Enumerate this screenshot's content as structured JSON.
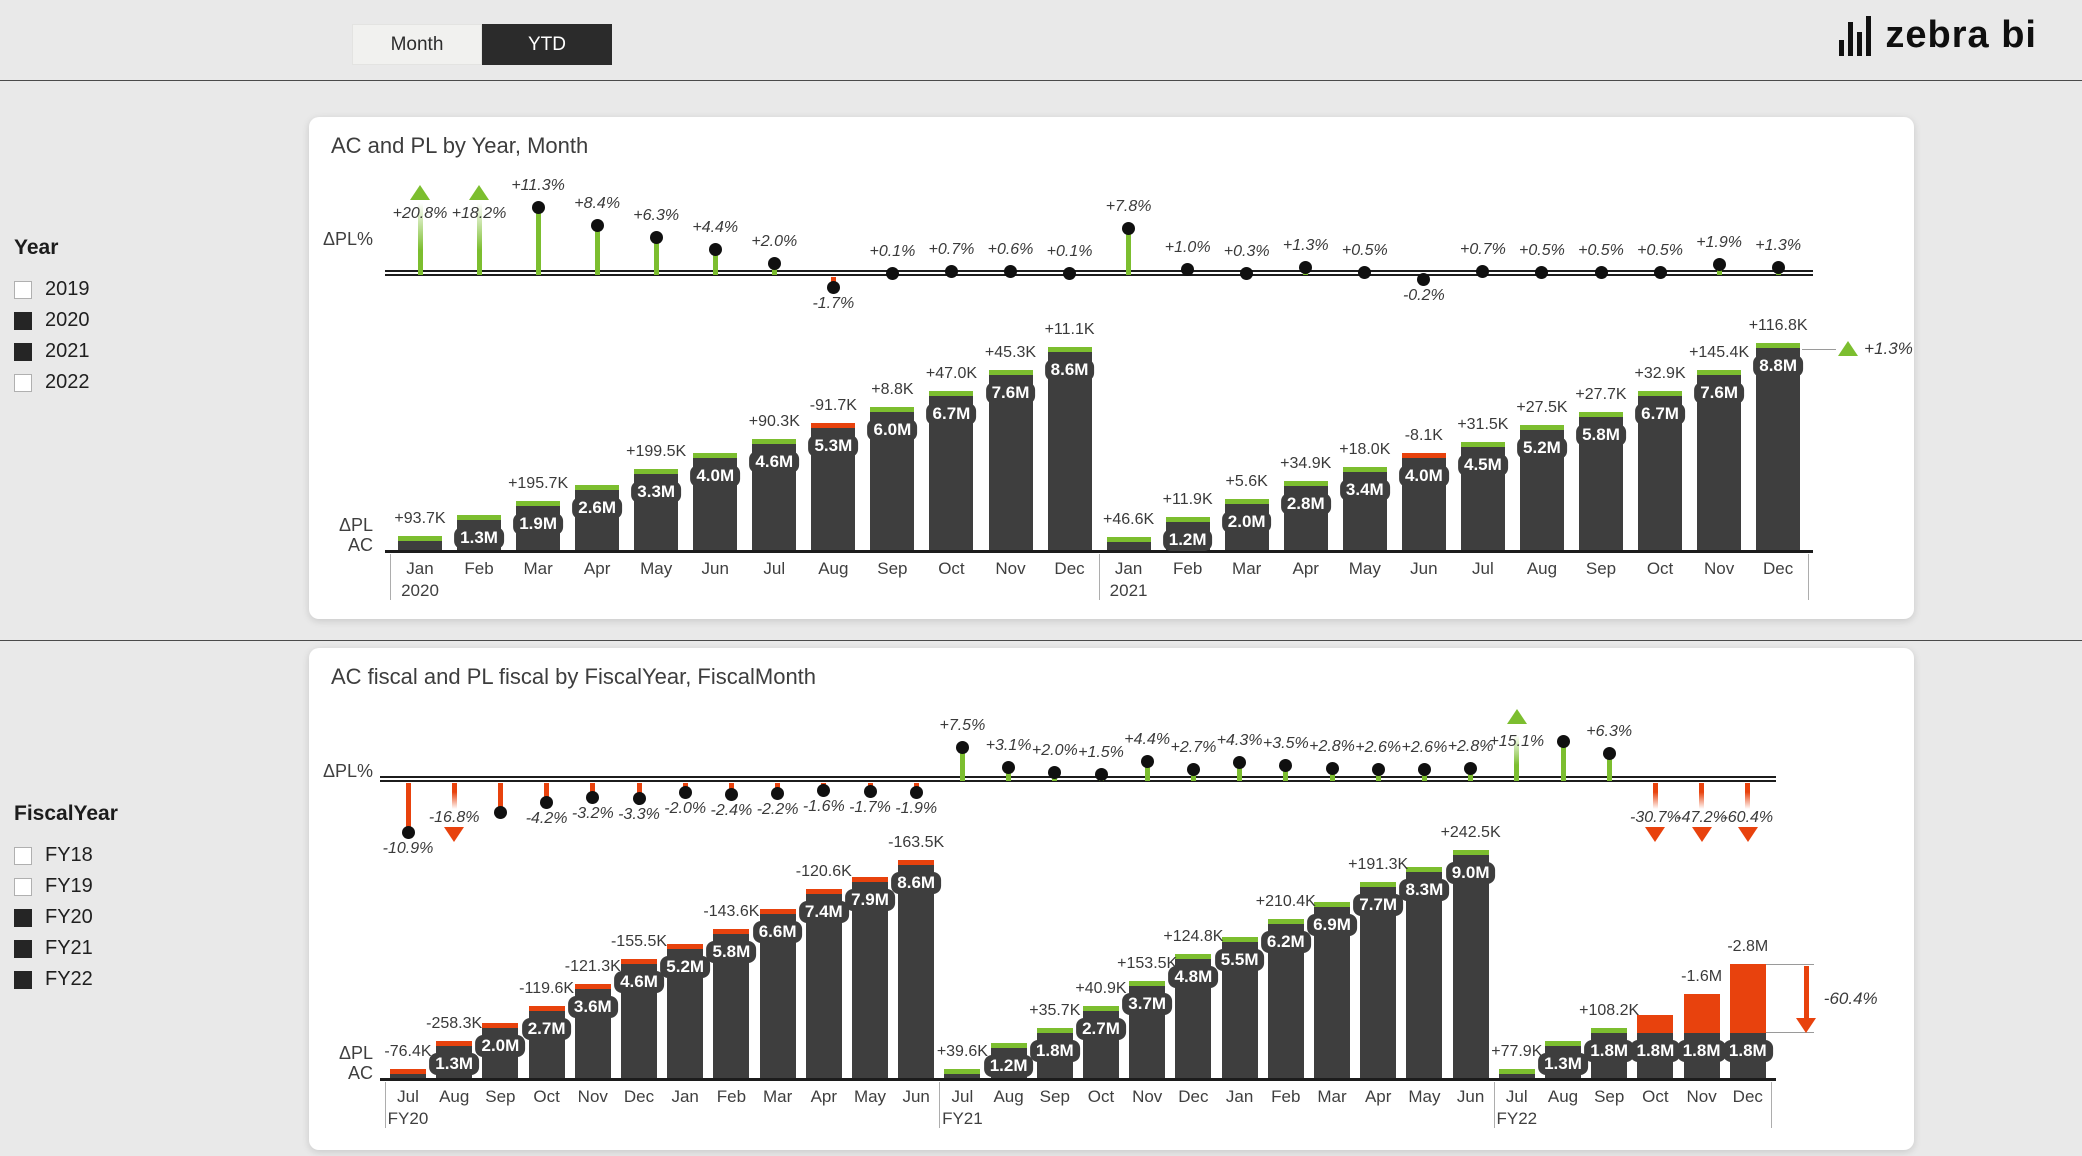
{
  "ui": {
    "period_toggle": {
      "options": [
        {
          "label": "Month",
          "active": false
        },
        {
          "label": "YTD",
          "active": true
        }
      ]
    },
    "logo_text": "zebra bi",
    "filters": [
      {
        "title": "Year",
        "options": [
          {
            "label": "2019",
            "checked": false
          },
          {
            "label": "2020",
            "checked": true
          },
          {
            "label": "2021",
            "checked": true
          },
          {
            "label": "2022",
            "checked": false
          }
        ]
      },
      {
        "title": "FiscalYear",
        "options": [
          {
            "label": "FY18",
            "checked": false
          },
          {
            "label": "FY19",
            "checked": false
          },
          {
            "label": "FY20",
            "checked": true
          },
          {
            "label": "FY21",
            "checked": true
          },
          {
            "label": "FY22",
            "checked": true
          }
        ]
      }
    ],
    "colors": {
      "green": "#7cbe2f",
      "red": "#e8420d",
      "bar": "#3e3e3e"
    }
  },
  "chart_data": [
    {
      "type": "bar",
      "title": "AC and PL by Year, Month",
      "axes": {
        "pct": "ΔPL%",
        "bar1": "ΔPL",
        "bar2": "AC"
      },
      "categories": [
        "Jan",
        "Feb",
        "Mar",
        "Apr",
        "May",
        "Jun",
        "Jul",
        "Aug",
        "Sep",
        "Oct",
        "Nov",
        "Dec",
        "Jan",
        "Feb",
        "Mar",
        "Apr",
        "May",
        "Jun",
        "Jul",
        "Aug",
        "Sep",
        "Oct",
        "Nov",
        "Dec"
      ],
      "group_labels": {
        "0": "2020",
        "12": "2021"
      },
      "series": [
        {
          "name": "ΔPL%",
          "unit": "%",
          "values": [
            20.8,
            18.2,
            11.3,
            8.4,
            6.3,
            4.4,
            2.0,
            -1.7,
            0.1,
            0.7,
            0.6,
            0.1,
            7.8,
            1.0,
            0.3,
            1.3,
            0.5,
            -0.2,
            0.7,
            0.5,
            0.5,
            0.5,
            1.9,
            1.3
          ],
          "labels": [
            "+20.8%",
            "+18.2%",
            "+11.3%",
            "+8.4%",
            "+6.3%",
            "+4.4%",
            "+2.0%",
            "-1.7%",
            "+0.1%",
            "+0.7%",
            "+0.6%",
            "+0.1%",
            "+7.8%",
            "+1.0%",
            "+0.3%",
            "+1.3%",
            "+0.5%",
            "-0.2%",
            "+0.7%",
            "+0.5%",
            "+0.5%",
            "+0.5%",
            "+1.9%",
            "+1.3%"
          ],
          "truncated_up": [
            0,
            1
          ],
          "truncated_down": []
        },
        {
          "name": "AC",
          "unit": "M",
          "values": [
            0.4,
            1.3,
            1.9,
            2.6,
            3.3,
            4.0,
            4.6,
            5.3,
            6.0,
            6.7,
            7.6,
            8.6,
            0.35,
            1.2,
            2.0,
            2.8,
            3.4,
            4.0,
            4.5,
            5.2,
            5.8,
            6.7,
            7.6,
            8.8
          ],
          "labels": [
            null,
            "1.3M",
            "1.9M",
            "2.6M",
            "3.3M",
            "4.0M",
            "4.6M",
            "5.3M",
            "6.0M",
            "6.7M",
            "7.6M",
            "8.6M",
            null,
            "1.2M",
            "2.0M",
            "2.8M",
            "3.4M",
            "4.0M",
            "4.5M",
            "5.2M",
            "5.8M",
            "6.7M",
            "7.6M",
            "8.8M"
          ]
        },
        {
          "name": "ΔPL",
          "unit": "K",
          "labels": [
            "+93.7K",
            null,
            "+195.7K",
            null,
            "+199.5K",
            null,
            "+90.3K",
            "-91.7K",
            "+8.8K",
            "+47.0K",
            "+45.3K",
            "+11.1K",
            "+46.6K",
            "+11.9K",
            "+5.6K",
            "+34.9K",
            "+18.0K",
            "-8.1K",
            "+31.5K",
            "+27.5K",
            "+27.7K",
            "+32.9K",
            "+145.4K",
            "+116.8K"
          ]
        }
      ],
      "pl_gap": {},
      "total_annotation": {
        "label": "+1.3%",
        "direction": "up"
      }
    },
    {
      "type": "bar",
      "title": "AC fiscal and PL fiscal by FiscalYear, FiscalMonth",
      "axes": {
        "pct": "ΔPL%",
        "bar1": "ΔPL",
        "bar2": "AC"
      },
      "categories": [
        "Jul",
        "Aug",
        "Sep",
        "Oct",
        "Nov",
        "Dec",
        "Jan",
        "Feb",
        "Mar",
        "Apr",
        "May",
        "Jun",
        "Jul",
        "Aug",
        "Sep",
        "Oct",
        "Nov",
        "Dec",
        "Jan",
        "Feb",
        "Mar",
        "Apr",
        "May",
        "Jun",
        "Jul",
        "Aug",
        "Sep",
        "Oct",
        "Nov",
        "Dec"
      ],
      "group_labels": {
        "0": "FY20",
        "12": "FY21",
        "24": "FY22"
      },
      "series": [
        {
          "name": "ΔPL%",
          "unit": "%",
          "values": [
            -10.9,
            -16.8,
            -6.5,
            -4.2,
            -3.2,
            -3.3,
            -2.0,
            -2.4,
            -2.2,
            -1.6,
            -1.7,
            -1.9,
            7.5,
            3.1,
            2.0,
            1.5,
            4.4,
            2.7,
            4.3,
            3.5,
            2.8,
            2.6,
            2.6,
            2.8,
            15.1,
            9.0,
            6.3,
            -30.7,
            -47.2,
            -60.4
          ],
          "labels": [
            "-10.9%",
            "-16.8%",
            null,
            "-4.2%",
            "-3.2%",
            "-3.3%",
            "-2.0%",
            "-2.4%",
            "-2.2%",
            "-1.6%",
            "-1.7%",
            "-1.9%",
            "+7.5%",
            "+3.1%",
            "+2.0%",
            "+1.5%",
            "+4.4%",
            "+2.7%",
            "+4.3%",
            "+3.5%",
            "+2.8%",
            "+2.6%",
            "+2.6%",
            "+2.8%",
            "+15.1%",
            null,
            "+6.3%",
            "-30.7%",
            "-47.2%",
            "-60.4%"
          ],
          "truncated_up": [
            24
          ],
          "truncated_down": [
            1,
            27,
            28,
            29
          ]
        },
        {
          "name": "AC fiscal",
          "unit": "M",
          "values": [
            0.18,
            1.3,
            2.0,
            2.7,
            3.6,
            4.6,
            5.2,
            5.8,
            6.6,
            7.4,
            7.9,
            8.6,
            0.15,
            1.2,
            1.8,
            2.7,
            3.7,
            4.8,
            5.5,
            6.2,
            6.9,
            7.7,
            8.3,
            9.0,
            0.18,
            1.3,
            1.8,
            1.8,
            1.8,
            1.8
          ],
          "labels": [
            null,
            "1.3M",
            "2.0M",
            "2.7M",
            "3.6M",
            "4.6M",
            "5.2M",
            "5.8M",
            "6.6M",
            "7.4M",
            "7.9M",
            "8.6M",
            null,
            "1.2M",
            "1.8M",
            "2.7M",
            "3.7M",
            "4.8M",
            "5.5M",
            "6.2M",
            "6.9M",
            "7.7M",
            "8.3M",
            "9.0M",
            null,
            "1.3M",
            "1.8M",
            "1.8M",
            "1.8M",
            "1.8M"
          ]
        },
        {
          "name": "ΔPL fiscal",
          "unit": "K",
          "labels": [
            "-76.4K",
            "-258.3K",
            null,
            "-119.6K",
            "-121.3K",
            "-155.5K",
            null,
            "-143.6K",
            null,
            "-120.6K",
            null,
            "-163.5K",
            "+39.6K",
            null,
            "+35.7K",
            "+40.9K",
            "+153.5K",
            "+124.8K",
            null,
            "+210.4K",
            null,
            "+191.3K",
            null,
            "+242.5K",
            "+77.9K",
            null,
            "+108.2K",
            null,
            "-1.6M",
            "-2.8M"
          ]
        }
      ],
      "pl_gap": {
        "27": 0.75,
        "28": 1.6,
        "29": 2.8
      },
      "total_annotation": {
        "label": "-60.4%",
        "direction": "down"
      }
    }
  ]
}
